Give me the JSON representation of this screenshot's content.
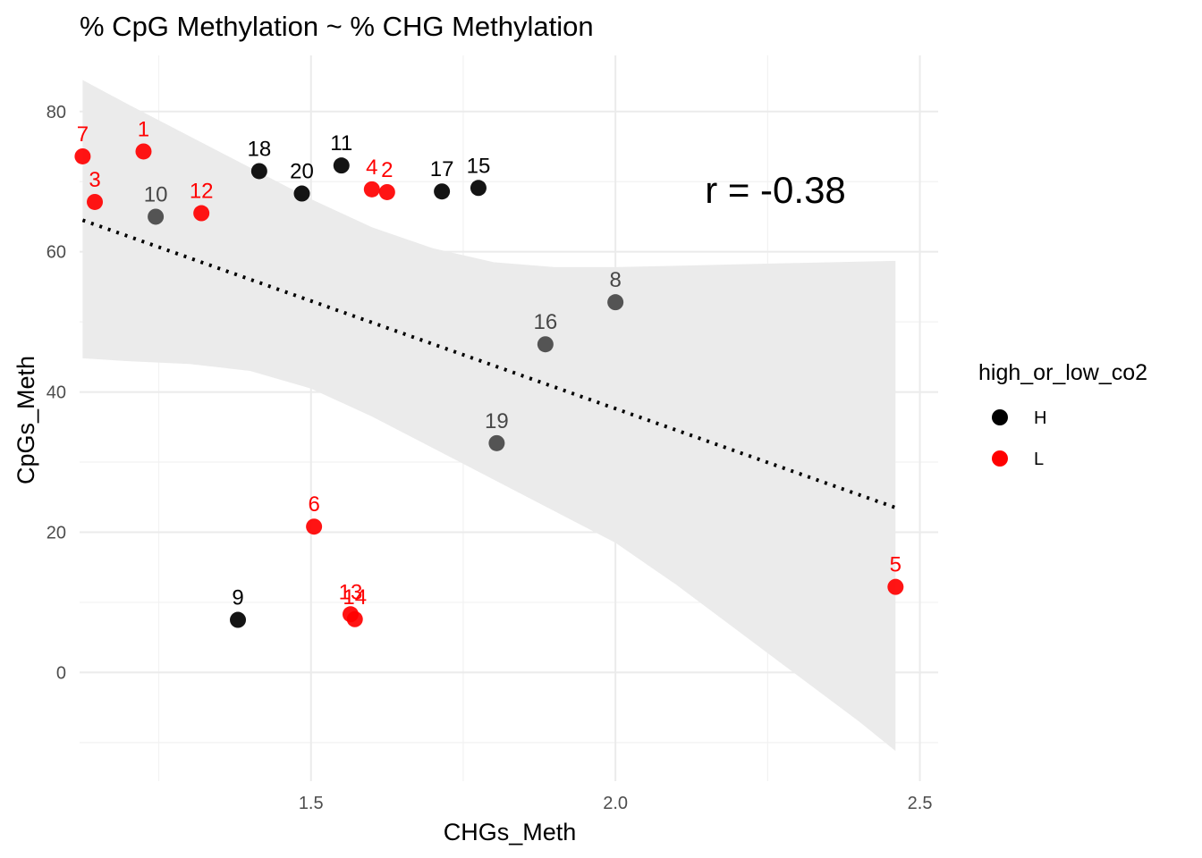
{
  "chart_data": {
    "type": "scatter",
    "title": "% CpG Methylation ~ % CHG Methylation",
    "xlabel": "CHGs_Meth",
    "ylabel": "CpGs_Meth",
    "xlim": [
      1.12,
      2.53
    ],
    "ylim": [
      -15.5,
      88
    ],
    "x_ticks": [
      1.5,
      2.0,
      2.5
    ],
    "x_tick_labels": [
      "1.5",
      "2.0",
      "2.5"
    ],
    "x_minor_ticks": [
      1.25,
      1.75,
      2.25
    ],
    "y_ticks": [
      0,
      20,
      40,
      60,
      80
    ],
    "y_tick_labels": [
      "0",
      "20",
      "40",
      "60",
      "80"
    ],
    "y_minor_ticks": [
      -10,
      10,
      30,
      50,
      70
    ],
    "grid": true,
    "legend": {
      "title": "high_or_low_co2",
      "placement": "right",
      "entries": [
        {
          "label": "H",
          "color": "#000000"
        },
        {
          "label": "L",
          "color": "#ff0000"
        }
      ]
    },
    "annotation": "r = -0.38",
    "annotation_position": {
      "x": 2.25,
      "y": 69.5
    },
    "trend_line": {
      "style": "dotted",
      "color": "#000000",
      "x": [
        1.125,
        2.46
      ],
      "y": [
        64.5,
        23.5
      ]
    },
    "confidence_band": {
      "color": "#ebebeb",
      "x": [
        1.125,
        1.2,
        1.3,
        1.4,
        1.5,
        1.6,
        1.7,
        1.8,
        1.9,
        2.0,
        2.1,
        2.2,
        2.3,
        2.4,
        2.46
      ],
      "upper": [
        84.5,
        81.0,
        76.5,
        72.0,
        67.5,
        63.5,
        60.5,
        58.5,
        57.8,
        57.8,
        58.0,
        58.2,
        58.4,
        58.6,
        58.7
      ],
      "lower": [
        44.8,
        44.4,
        44.0,
        43.0,
        40.5,
        36.5,
        32.0,
        27.5,
        23.0,
        18.5,
        12.5,
        6.0,
        -0.5,
        -7.0,
        -11.2
      ]
    },
    "series": [
      {
        "name": "H",
        "color": "#000000",
        "points": [
          {
            "label": "18",
            "x": 1.415,
            "y": 71.5
          },
          {
            "label": "20",
            "x": 1.485,
            "y": 68.3
          },
          {
            "label": "11",
            "x": 1.55,
            "y": 72.3
          },
          {
            "label": "17",
            "x": 1.715,
            "y": 68.6
          },
          {
            "label": "15",
            "x": 1.775,
            "y": 69.1
          },
          {
            "label": "9",
            "x": 1.38,
            "y": 7.5
          }
        ]
      },
      {
        "name": "L",
        "color": "#ff0000",
        "points": [
          {
            "label": "7",
            "x": 1.125,
            "y": 73.6
          },
          {
            "label": "1",
            "x": 1.225,
            "y": 74.3
          },
          {
            "label": "3",
            "x": 1.145,
            "y": 67.1
          },
          {
            "label": "12",
            "x": 1.32,
            "y": 65.5
          },
          {
            "label": "4",
            "x": 1.6,
            "y": 68.9
          },
          {
            "label": "2",
            "x": 1.625,
            "y": 68.5
          },
          {
            "label": "6",
            "x": 1.505,
            "y": 20.8
          },
          {
            "label": "13",
            "x": 1.565,
            "y": 8.3
          },
          {
            "label": "14",
            "x": 1.572,
            "y": 7.6
          },
          {
            "label": "5",
            "x": 2.46,
            "y": 12.2
          }
        ]
      },
      {
        "name": "",
        "color": "#474747",
        "points": [
          {
            "label": "10",
            "x": 1.245,
            "y": 65.0
          },
          {
            "label": "8",
            "x": 2.0,
            "y": 52.8
          },
          {
            "label": "16",
            "x": 1.885,
            "y": 46.8
          },
          {
            "label": "19",
            "x": 1.805,
            "y": 32.7
          }
        ]
      }
    ]
  }
}
